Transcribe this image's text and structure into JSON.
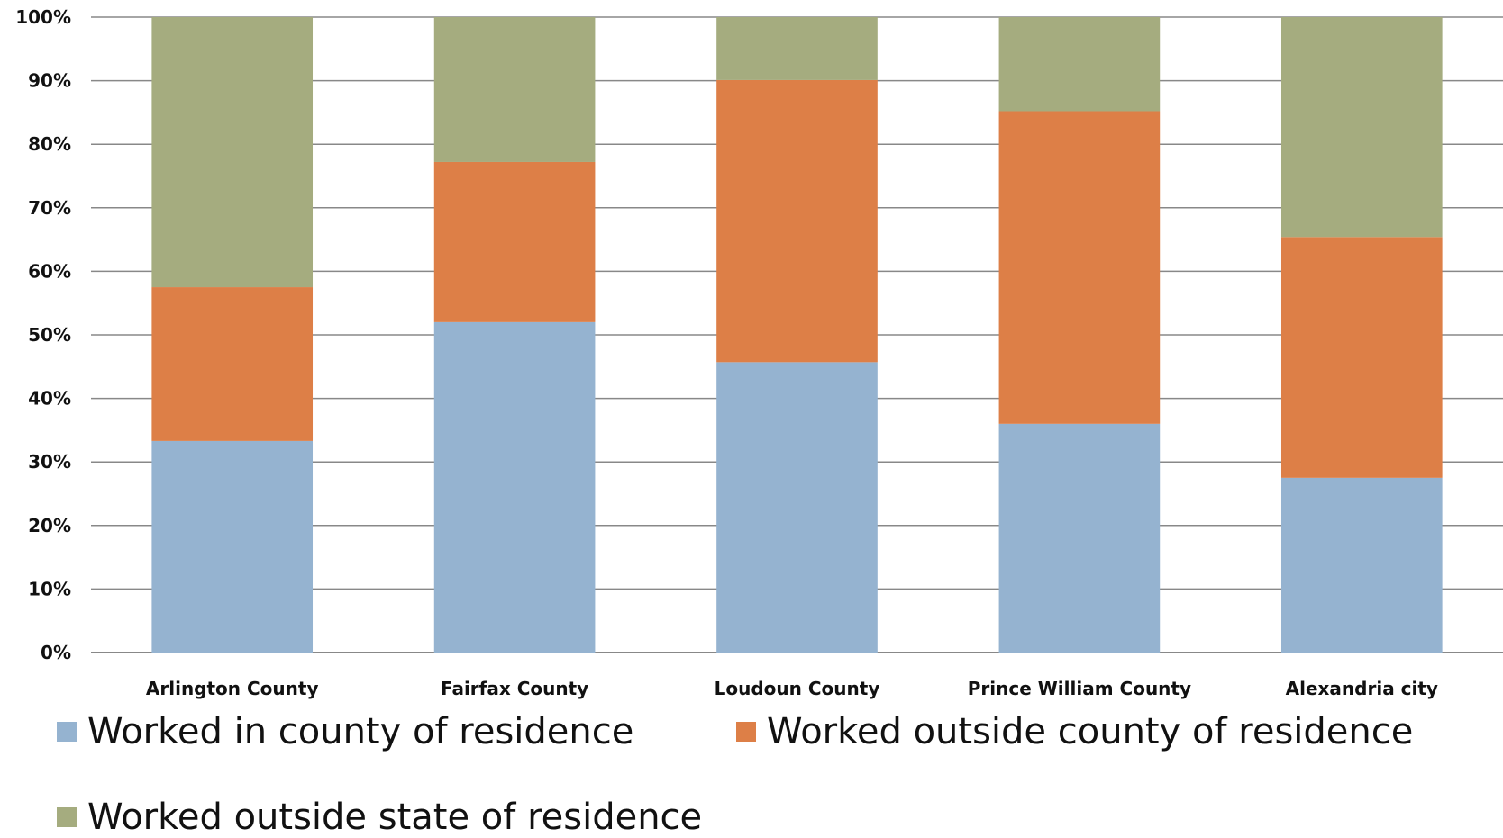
{
  "chart_data": {
    "type": "bar",
    "stacked": "percent",
    "categories": [
      "Arlington County",
      "Fairfax County",
      "Loudoun County",
      "Prince William County",
      "Alexandria city"
    ],
    "series": [
      {
        "name": "Worked in county of residence",
        "color": "#95B3D0",
        "values": [
          33.3,
          52,
          45.7,
          36,
          27.5
        ]
      },
      {
        "name": "Worked outside county of residence",
        "color": "#DD7F47",
        "values": [
          24.2,
          25.2,
          44.4,
          49.2,
          37.9
        ]
      },
      {
        "name": "Worked outside state of residence",
        "color": "#A5AC7F",
        "values": [
          42.5,
          22.8,
          9.9,
          14.8,
          34.6
        ]
      }
    ],
    "title": "",
    "xlabel": "",
    "ylabel": "",
    "ylim": [
      0,
      100
    ],
    "yticks": [
      "0%",
      "10%",
      "20%",
      "30%",
      "40%",
      "50%",
      "60%",
      "70%",
      "80%",
      "90%",
      "100%"
    ],
    "grid": true,
    "legend_position": "bottom"
  }
}
